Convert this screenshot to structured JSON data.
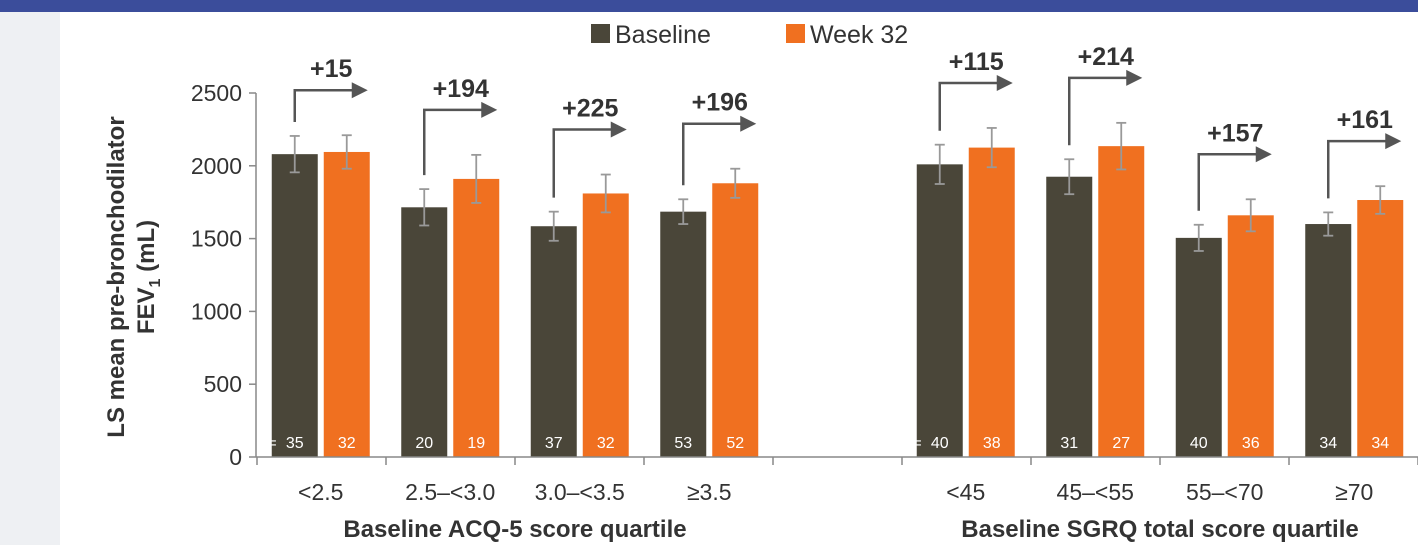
{
  "chart_data": {
    "type": "bar",
    "ylabel_line1": "LS mean pre-bronchodilator",
    "ylabel_line2_main": "FEV",
    "ylabel_line2_sub": "1",
    "ylabel_line2_rest": " (mL)",
    "ylim": [
      0,
      2500
    ],
    "yticks": [
      0,
      500,
      1000,
      1500,
      2000,
      2500
    ],
    "colors": {
      "Baseline": "#4a4639",
      "Week 32": "#f07020"
    },
    "legend": [
      {
        "name": "Baseline",
        "color": "#4a4639"
      },
      {
        "name": "Week 32",
        "color": "#f07020"
      }
    ],
    "n_prefix": "N=",
    "groups": [
      {
        "xlabel": "Baseline ACQ-5 score quartile",
        "categories": [
          "<2.5",
          "2.5–<3.0",
          "3.0–<3.5",
          "≥3.5"
        ],
        "series": [
          {
            "name": "Baseline",
            "values": [
              2080,
              1715,
              1585,
              1685
            ],
            "err": [
              125,
              125,
              100,
              85
            ],
            "n": [
              "35",
              "20",
              "37",
              "53"
            ]
          },
          {
            "name": "Week 32",
            "values": [
              2095,
              1910,
              1810,
              1880
            ],
            "err": [
              115,
              165,
              130,
              100
            ],
            "n": [
              "32",
              "19",
              "32",
              "52"
            ]
          }
        ],
        "deltas": [
          "+15",
          "+194",
          "+225",
          "+196"
        ]
      },
      {
        "xlabel": "Baseline SGRQ total score quartile",
        "categories": [
          "<45",
          "45–<55",
          "55–<70",
          "≥70"
        ],
        "series": [
          {
            "name": "Baseline",
            "values": [
              2010,
              1925,
              1505,
              1600
            ],
            "err": [
              135,
              120,
              90,
              80
            ],
            "n": [
              "40",
              "31",
              "40",
              "34"
            ]
          },
          {
            "name": "Week 32",
            "values": [
              2125,
              2135,
              1660,
              1765
            ],
            "err": [
              135,
              160,
              110,
              95
            ],
            "n": [
              "38",
              "27",
              "36",
              "34"
            ]
          }
        ],
        "deltas": [
          "+115",
          "+214",
          "+157",
          "+161"
        ]
      }
    ]
  }
}
